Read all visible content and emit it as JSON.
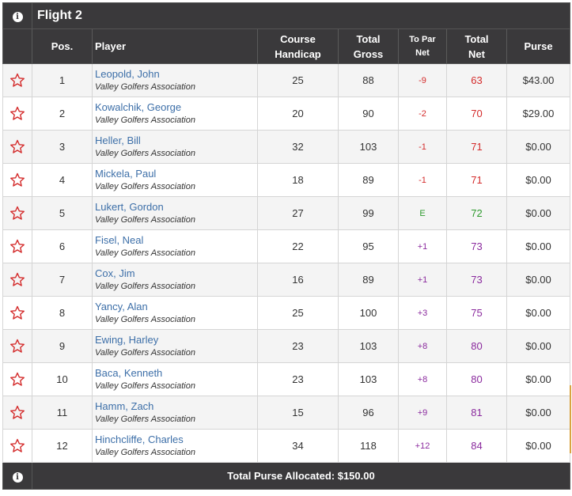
{
  "flight_title": "Flight 2",
  "headers": {
    "pos": "Pos.",
    "player": "Player",
    "course_handicap_1": "Course",
    "course_handicap_2": "Handicap",
    "total_gross_1": "Total",
    "total_gross_2": "Gross",
    "to_par_net_1": "To Par",
    "to_par_net_2": "Net",
    "total_net_1": "Total",
    "total_net_2": "Net",
    "purse": "Purse"
  },
  "rows": [
    {
      "pos": "1",
      "name": "Leopold, John",
      "club": "Valley Golfers Association",
      "handicap": "25",
      "gross": "88",
      "to_par": "-9",
      "net": "63",
      "purse": "$43.00",
      "tone": "neg"
    },
    {
      "pos": "2",
      "name": "Kowalchik, George",
      "club": "Valley Golfers Association",
      "handicap": "20",
      "gross": "90",
      "to_par": "-2",
      "net": "70",
      "purse": "$29.00",
      "tone": "neg"
    },
    {
      "pos": "3",
      "name": "Heller, Bill",
      "club": "Valley Golfers Association",
      "handicap": "32",
      "gross": "103",
      "to_par": "-1",
      "net": "71",
      "purse": "$0.00",
      "tone": "neg"
    },
    {
      "pos": "4",
      "name": "Mickela, Paul",
      "club": "Valley Golfers Association",
      "handicap": "18",
      "gross": "89",
      "to_par": "-1",
      "net": "71",
      "purse": "$0.00",
      "tone": "neg"
    },
    {
      "pos": "5",
      "name": "Lukert, Gordon",
      "club": "Valley Golfers Association",
      "handicap": "27",
      "gross": "99",
      "to_par": "E",
      "net": "72",
      "purse": "$0.00",
      "tone": "even"
    },
    {
      "pos": "6",
      "name": "Fisel, Neal",
      "club": "Valley Golfers Association",
      "handicap": "22",
      "gross": "95",
      "to_par": "+1",
      "net": "73",
      "purse": "$0.00",
      "tone": "pos"
    },
    {
      "pos": "7",
      "name": "Cox, Jim",
      "club": "Valley Golfers Association",
      "handicap": "16",
      "gross": "89",
      "to_par": "+1",
      "net": "73",
      "purse": "$0.00",
      "tone": "pos"
    },
    {
      "pos": "8",
      "name": "Yancy, Alan",
      "club": "Valley Golfers Association",
      "handicap": "25",
      "gross": "100",
      "to_par": "+3",
      "net": "75",
      "purse": "$0.00",
      "tone": "pos"
    },
    {
      "pos": "9",
      "name": "Ewing, Harley",
      "club": "Valley Golfers Association",
      "handicap": "23",
      "gross": "103",
      "to_par": "+8",
      "net": "80",
      "purse": "$0.00",
      "tone": "pos"
    },
    {
      "pos": "10",
      "name": "Baca, Kenneth",
      "club": "Valley Golfers Association",
      "handicap": "23",
      "gross": "103",
      "to_par": "+8",
      "net": "80",
      "purse": "$0.00",
      "tone": "pos"
    },
    {
      "pos": "11",
      "name": "Hamm, Zach",
      "club": "Valley Golfers Association",
      "handicap": "15",
      "gross": "96",
      "to_par": "+9",
      "net": "81",
      "purse": "$0.00",
      "tone": "pos"
    },
    {
      "pos": "12",
      "name": "Hinchcliffe, Charles",
      "club": "Valley Golfers Association",
      "handicap": "34",
      "gross": "118",
      "to_par": "+12",
      "net": "84",
      "purse": "$0.00",
      "tone": "pos"
    }
  ],
  "footer": {
    "total_purse": "Total Purse Allocated: $150.00"
  },
  "icons": {
    "info": "info-icon",
    "favorite": "star-outline-icon"
  },
  "colors": {
    "header_bg": "#3a393b",
    "star": "#d42b2b",
    "under_par": "#d42b2b",
    "even_par": "#2e9a2e",
    "over_par": "#8b2b9e",
    "player_link": "#3d6fa8"
  }
}
